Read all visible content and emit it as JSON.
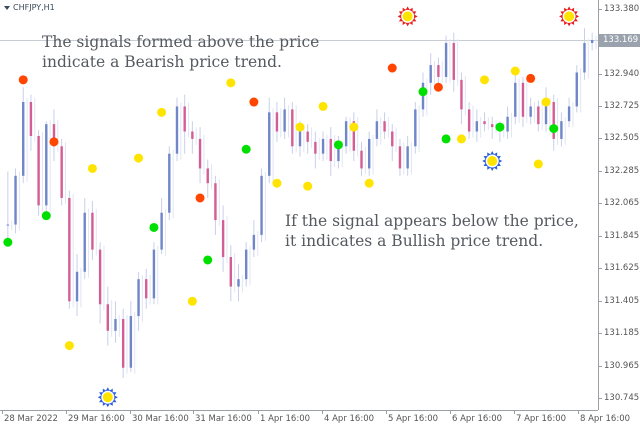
{
  "symbol_label": "CHFJPY,H1",
  "current_price": "133.169",
  "annotations": {
    "top": [
      "The signals formed above the price",
      "indicate a Bearish price trend."
    ],
    "bottom": [
      "If the signal appears below the price,",
      "it indicates a Bullish price trend."
    ]
  },
  "colors": {
    "bear_candle": "#d35d94",
    "bull_candle": "#6f86c9",
    "wick": "#c9cfeb",
    "red_dot": "#ff4500",
    "green_dot": "#00e000",
    "yellow_dot": "#ffe400",
    "sun_red": "#e82020",
    "sun_blue": "#3060e0"
  },
  "chart_data": {
    "type": "candlestick",
    "y_ticks": [
      "133.380",
      "133.169",
      "132.940",
      "132.725",
      "132.505",
      "132.285",
      "132.065",
      "131.845",
      "131.625",
      "131.405",
      "131.185",
      "130.965",
      "130.745"
    ],
    "x_ticks": [
      "28 Mar 2022",
      "29 Mar 16:00",
      "30 Mar 16:00",
      "31 Mar 16:00",
      "1 Apr 16:00",
      "4 Apr 16:00",
      "5 Apr 16:00",
      "6 Apr 16:00",
      "7 Apr 16:00",
      "8 Apr 16:00"
    ],
    "ylim": [
      130.7,
      133.4
    ],
    "candles": [
      [
        131.92,
        131.92,
        132.28,
        131.8
      ],
      [
        131.92,
        132.25,
        132.3,
        131.86
      ],
      [
        132.25,
        132.75,
        132.85,
        132.2
      ],
      [
        132.75,
        132.52,
        132.8,
        132.42
      ],
      [
        132.52,
        132.05,
        132.56,
        131.98
      ],
      [
        132.05,
        132.6,
        132.62,
        132.0
      ],
      [
        132.6,
        132.45,
        132.7,
        132.35
      ],
      [
        132.45,
        132.1,
        132.5,
        132.05
      ],
      [
        132.1,
        131.4,
        132.15,
        131.35
      ],
      [
        131.4,
        131.6,
        131.72,
        131.3
      ],
      [
        131.6,
        132.0,
        132.1,
        131.55
      ],
      [
        132.0,
        131.75,
        132.08,
        131.68
      ],
      [
        131.75,
        131.38,
        131.8,
        131.25
      ],
      [
        131.38,
        131.2,
        131.5,
        131.1
      ],
      [
        131.2,
        131.28,
        131.4,
        131.12
      ],
      [
        131.28,
        130.95,
        131.35,
        130.88
      ],
      [
        130.95,
        131.3,
        131.4,
        130.92
      ],
      [
        131.3,
        131.55,
        131.6,
        131.2
      ],
      [
        131.55,
        131.42,
        131.62,
        131.35
      ],
      [
        131.42,
        131.75,
        131.8,
        131.38
      ],
      [
        131.75,
        132.0,
        132.1,
        131.72
      ],
      [
        132.0,
        132.4,
        132.45,
        131.95
      ],
      [
        132.4,
        132.72,
        132.78,
        132.35
      ],
      [
        132.72,
        132.55,
        132.8,
        132.4
      ],
      [
        132.55,
        132.5,
        132.62,
        132.4
      ],
      [
        132.5,
        132.3,
        132.58,
        132.2
      ],
      [
        132.3,
        132.2,
        132.36,
        132.1
      ],
      [
        132.2,
        131.95,
        132.25,
        131.85
      ],
      [
        131.95,
        131.7,
        132.05,
        131.6
      ],
      [
        131.7,
        131.5,
        131.78,
        131.4
      ],
      [
        131.5,
        131.55,
        131.65,
        131.4
      ],
      [
        131.55,
        131.75,
        131.8,
        131.5
      ],
      [
        131.75,
        131.85,
        131.95,
        131.7
      ],
      [
        131.85,
        132.25,
        132.3,
        131.8
      ],
      [
        132.25,
        132.68,
        132.78,
        132.2
      ],
      [
        132.68,
        132.55,
        132.75,
        132.48
      ],
      [
        132.55,
        132.7,
        132.78,
        132.5
      ],
      [
        132.7,
        132.45,
        132.75,
        132.4
      ],
      [
        132.45,
        132.55,
        132.62,
        132.38
      ],
      [
        132.55,
        132.48,
        132.6,
        132.4
      ],
      [
        132.48,
        132.4,
        132.55,
        132.3
      ],
      [
        132.4,
        132.5,
        132.55,
        132.35
      ],
      [
        132.5,
        132.35,
        132.58,
        132.25
      ],
      [
        132.35,
        132.45,
        132.52,
        132.3
      ],
      [
        132.45,
        132.62,
        132.65,
        132.4
      ],
      [
        132.62,
        132.42,
        132.68,
        132.35
      ],
      [
        132.42,
        132.3,
        132.48,
        132.25
      ],
      [
        132.3,
        132.5,
        132.55,
        132.25
      ],
      [
        132.5,
        132.62,
        132.7,
        132.45
      ],
      [
        132.62,
        132.55,
        132.68,
        132.5
      ],
      [
        132.55,
        132.45,
        132.6,
        132.35
      ],
      [
        132.45,
        132.3,
        132.5,
        132.25
      ],
      [
        132.3,
        132.45,
        132.52,
        132.25
      ],
      [
        132.45,
        132.7,
        132.75,
        132.4
      ],
      [
        132.7,
        132.88,
        132.95,
        132.65
      ],
      [
        132.88,
        133.0,
        133.08,
        132.8
      ],
      [
        133.0,
        132.92,
        133.05,
        132.85
      ],
      [
        132.92,
        133.15,
        133.2,
        132.88
      ],
      [
        133.15,
        132.9,
        133.22,
        132.82
      ],
      [
        132.9,
        132.7,
        132.95,
        132.6
      ],
      [
        132.7,
        132.55,
        132.75,
        132.5
      ],
      [
        132.55,
        132.62,
        132.7,
        132.48
      ],
      [
        132.62,
        132.6,
        132.68,
        132.55
      ],
      [
        132.6,
        132.58,
        132.65,
        132.5
      ],
      [
        132.58,
        132.55,
        132.62,
        132.48
      ],
      [
        132.55,
        132.65,
        132.72,
        132.5
      ],
      [
        132.65,
        132.88,
        132.95,
        132.6
      ],
      [
        132.88,
        132.65,
        132.92,
        132.58
      ],
      [
        132.65,
        132.72,
        132.78,
        132.6
      ],
      [
        132.72,
        132.6,
        132.76,
        132.55
      ],
      [
        132.6,
        132.75,
        132.85,
        132.55
      ],
      [
        132.75,
        132.5,
        132.8,
        132.42
      ],
      [
        132.5,
        132.62,
        132.68,
        132.45
      ],
      [
        132.62,
        132.72,
        132.78,
        132.58
      ],
      [
        132.72,
        132.95,
        133.0,
        132.68
      ],
      [
        132.95,
        133.15,
        133.25,
        132.9
      ],
      [
        133.15,
        133.17,
        133.22,
        133.1
      ]
    ],
    "signals": [
      {
        "i": 0,
        "type": "green",
        "price": 131.8
      },
      {
        "i": 2,
        "type": "red",
        "price": 132.9
      },
      {
        "i": 5,
        "type": "green",
        "price": 131.98
      },
      {
        "i": 6,
        "type": "red",
        "price": 132.48
      },
      {
        "i": 8,
        "type": "yellow",
        "price": 131.1
      },
      {
        "i": 11,
        "type": "yellow",
        "price": 132.3
      },
      {
        "i": 13,
        "type": "sun-blue",
        "price": 130.75
      },
      {
        "i": 17,
        "type": "yellow",
        "price": 132.37
      },
      {
        "i": 19,
        "type": "green",
        "price": 131.9
      },
      {
        "i": 20,
        "type": "yellow",
        "price": 132.68
      },
      {
        "i": 24,
        "type": "yellow",
        "price": 131.4
      },
      {
        "i": 25,
        "type": "red",
        "price": 132.1
      },
      {
        "i": 26,
        "type": "green",
        "price": 131.68
      },
      {
        "i": 29,
        "type": "yellow",
        "price": 132.88
      },
      {
        "i": 31,
        "type": "green",
        "price": 132.43
      },
      {
        "i": 32,
        "type": "red",
        "price": 132.75
      },
      {
        "i": 35,
        "type": "yellow",
        "price": 132.2
      },
      {
        "i": 38,
        "type": "yellow",
        "price": 132.58
      },
      {
        "i": 39,
        "type": "yellow",
        "price": 132.18
      },
      {
        "i": 41,
        "type": "yellow",
        "price": 132.72
      },
      {
        "i": 43,
        "type": "green",
        "price": 132.46
      },
      {
        "i": 45,
        "type": "yellow",
        "price": 132.58
      },
      {
        "i": 47,
        "type": "yellow",
        "price": 132.2
      },
      {
        "i": 50,
        "type": "red",
        "price": 132.98
      },
      {
        "i": 52,
        "type": "sun-red",
        "price": 133.33
      },
      {
        "i": 54,
        "type": "green",
        "price": 132.82
      },
      {
        "i": 56,
        "type": "red",
        "price": 132.85
      },
      {
        "i": 57,
        "type": "green",
        "price": 132.5
      },
      {
        "i": 59,
        "type": "yellow",
        "price": 132.5
      },
      {
        "i": 62,
        "type": "yellow",
        "price": 132.9
      },
      {
        "i": 63,
        "type": "sun-blue",
        "price": 132.35
      },
      {
        "i": 64,
        "type": "green",
        "price": 132.58
      },
      {
        "i": 66,
        "type": "yellow",
        "price": 132.96
      },
      {
        "i": 68,
        "type": "red",
        "price": 132.91
      },
      {
        "i": 69,
        "type": "yellow",
        "price": 132.33
      },
      {
        "i": 70,
        "type": "yellow",
        "price": 132.75
      },
      {
        "i": 71,
        "type": "green",
        "price": 132.57
      },
      {
        "i": 73,
        "type": "sun-red",
        "price": 133.33
      }
    ]
  }
}
